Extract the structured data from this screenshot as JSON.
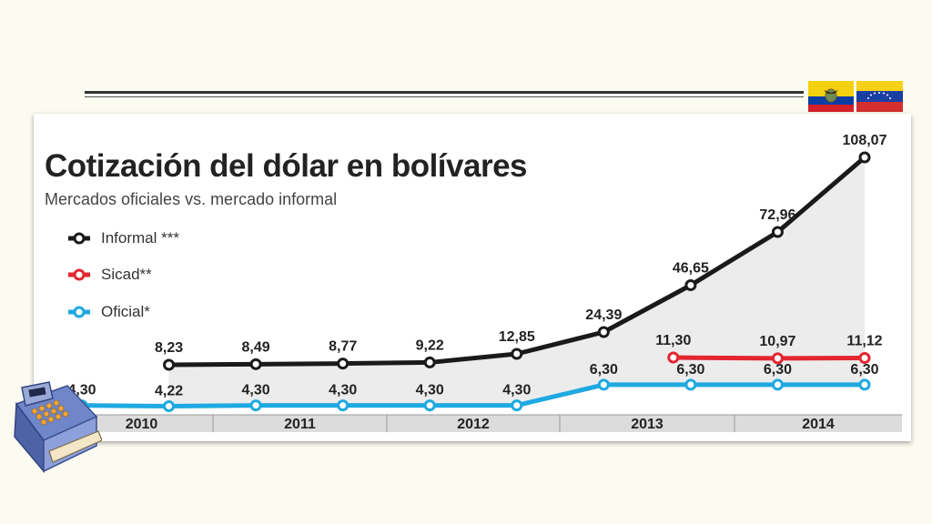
{
  "chart_data": {
    "type": "line",
    "title": "Cotización del dólar en bolívares",
    "subtitle": "Mercados oficiales vs. mercado informal",
    "x_labels": [
      "2010",
      "2011",
      "2012",
      "2013",
      "2014"
    ],
    "series": [
      {
        "name": "Informal ***",
        "color": "#1a1a1a",
        "points": [
          {
            "x": 2010.5,
            "y": 8.23,
            "label": "8,23"
          },
          {
            "x": 2011.0,
            "y": 8.49,
            "label": "8,49"
          },
          {
            "x": 2011.5,
            "y": 8.77,
            "label": "8,77"
          },
          {
            "x": 2012.0,
            "y": 9.22,
            "label": "9,22"
          },
          {
            "x": 2012.5,
            "y": 12.85,
            "label": "12,85"
          },
          {
            "x": 2013.0,
            "y": 24.39,
            "label": "24,39"
          },
          {
            "x": 2013.5,
            "y": 46.65,
            "label": "46,65"
          },
          {
            "x": 2014.0,
            "y": 72.96,
            "label": "72,96"
          },
          {
            "x": 2014.5,
            "y": 108.07,
            "label": "108,07"
          }
        ]
      },
      {
        "name": "Sicad**",
        "color": "#e3262f",
        "points": [
          {
            "x": 2013.4,
            "y": 11.3,
            "label": "11,30"
          },
          {
            "x": 2014.0,
            "y": 10.97,
            "label": "10,97"
          },
          {
            "x": 2014.5,
            "y": 11.12,
            "label": "11,12"
          }
        ]
      },
      {
        "name": "Oficial*",
        "color": "#1ea9e1",
        "points": [
          {
            "x": 2010.0,
            "y": 4.3,
            "label": "4,30"
          },
          {
            "x": 2010.5,
            "y": 4.22,
            "label": "4,22"
          },
          {
            "x": 2011.0,
            "y": 4.3,
            "label": "4,30"
          },
          {
            "x": 2011.5,
            "y": 4.3,
            "label": "4,30"
          },
          {
            "x": 2012.0,
            "y": 4.3,
            "label": "4,30"
          },
          {
            "x": 2012.5,
            "y": 4.3,
            "label": "4,30"
          },
          {
            "x": 2013.0,
            "y": 6.3,
            "label": "6,30"
          },
          {
            "x": 2013.5,
            "y": 6.3,
            "label": "6,30"
          },
          {
            "x": 2014.0,
            "y": 6.3,
            "label": "6,30"
          },
          {
            "x": 2014.5,
            "y": 6.3,
            "label": "6,30"
          }
        ]
      }
    ],
    "xlim": [
      2010,
      2014.5
    ],
    "ylim": [
      0,
      108.07
    ],
    "legend": "top-left",
    "grid": false
  },
  "decor": {
    "flags": [
      "ecuador-flag",
      "venezuela-flag"
    ],
    "register_icon": "cash-register-icon"
  }
}
